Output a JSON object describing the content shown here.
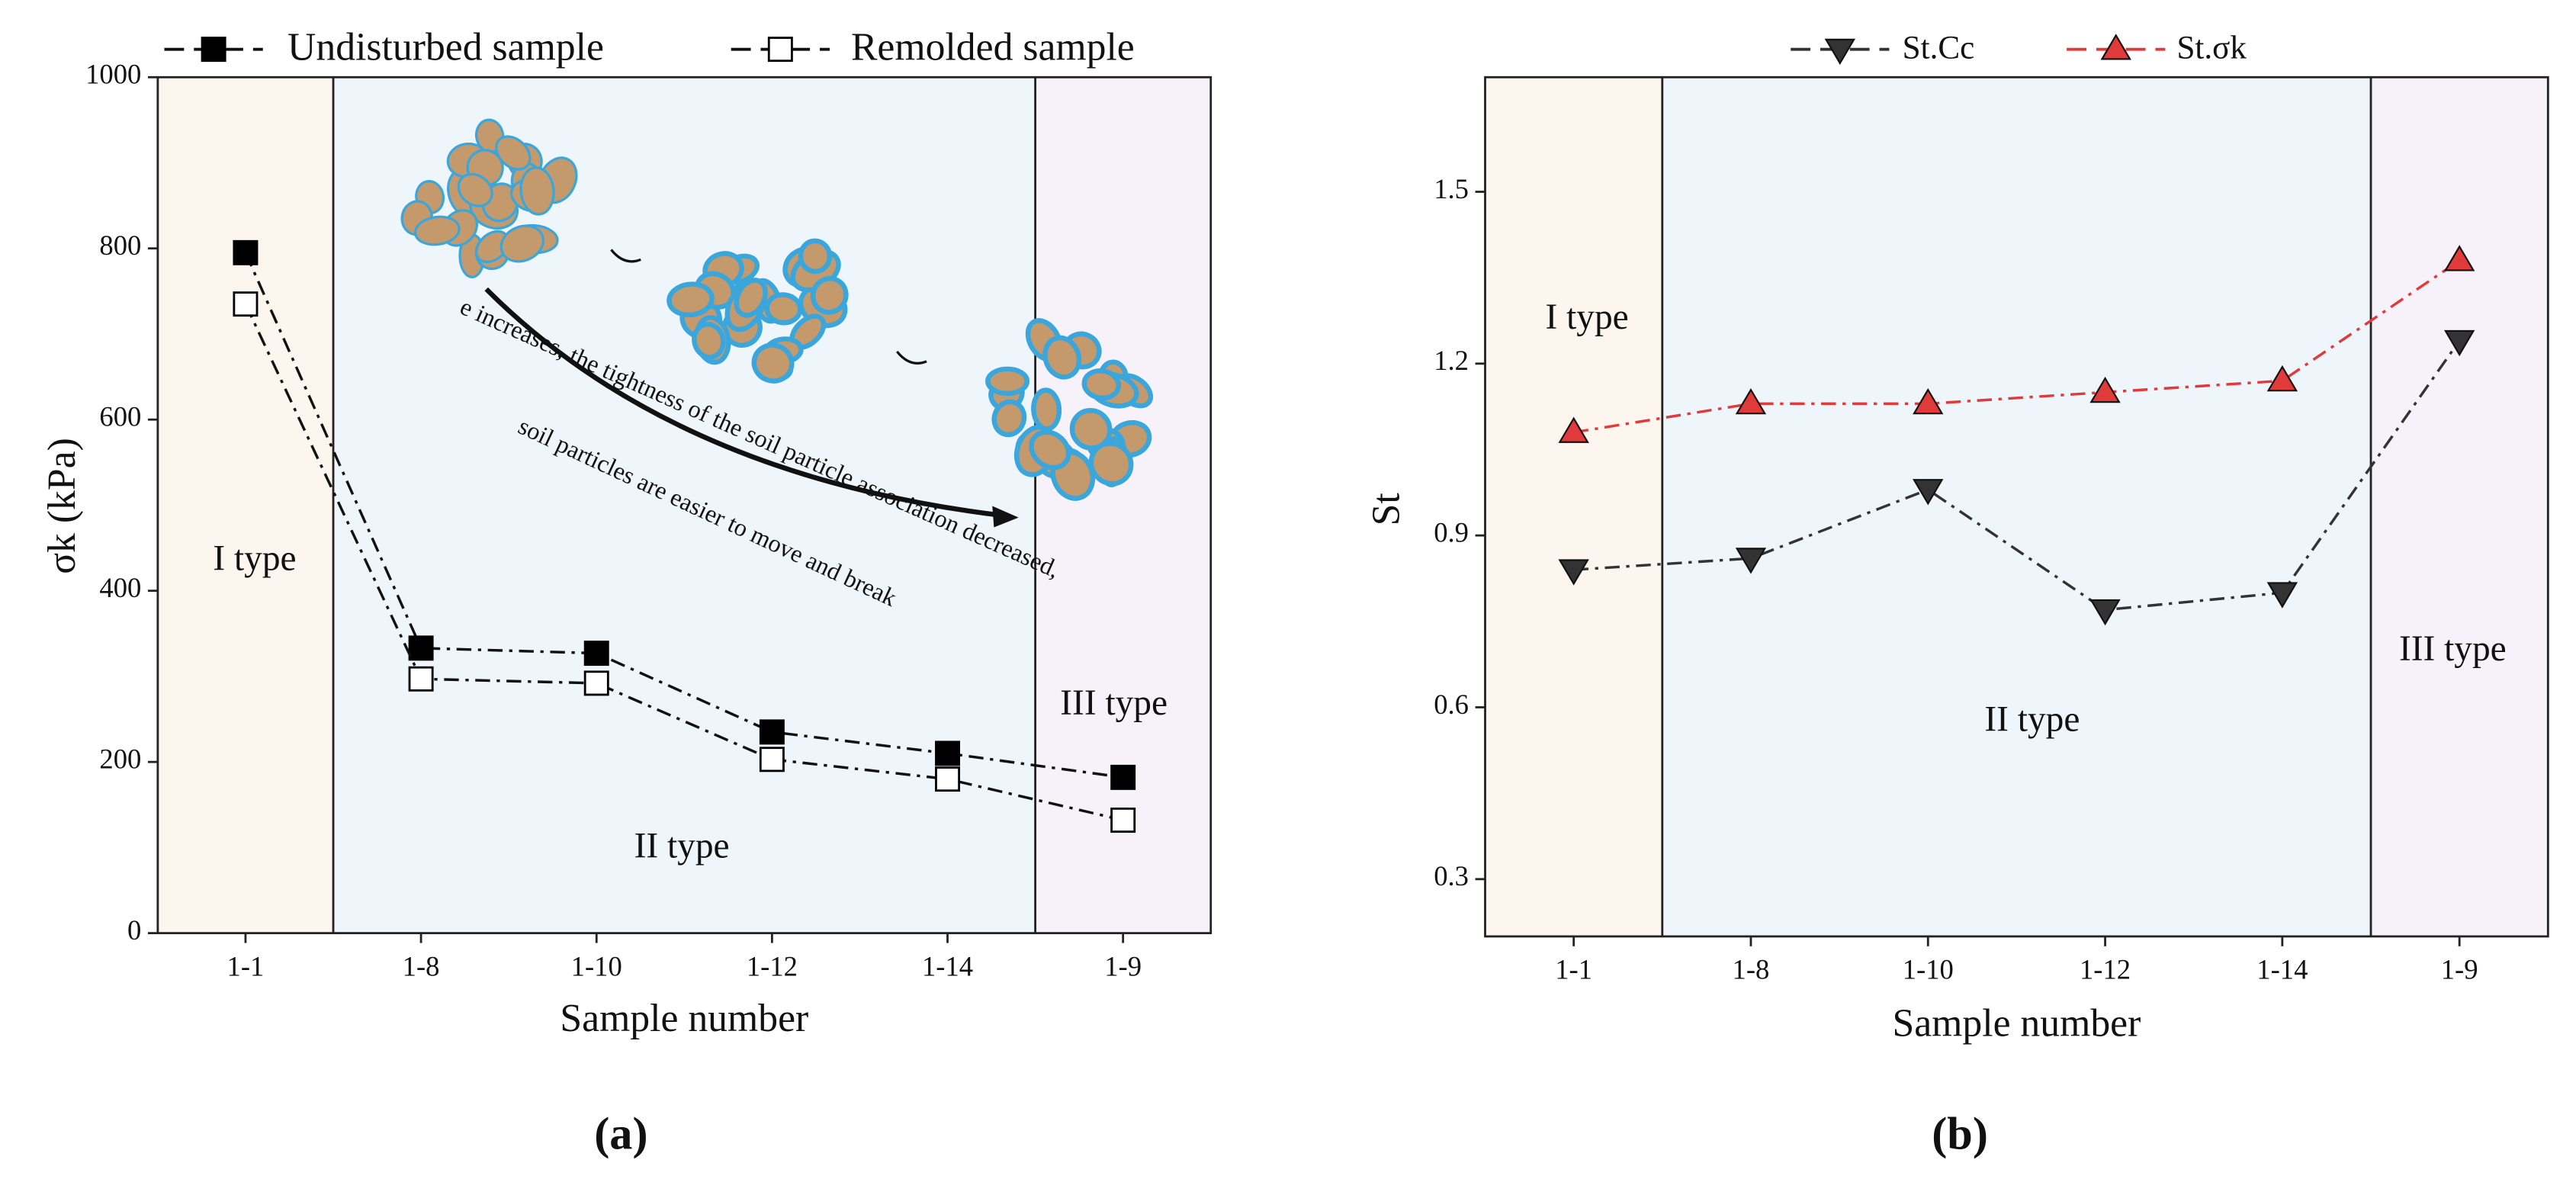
{
  "chart_data": [
    {
      "type": "line",
      "panel": "(a)",
      "xlabel": "Sample number",
      "ylabel": "σk (kPa)",
      "categories": [
        "1-1",
        "1-8",
        "1-10",
        "1-12",
        "1-14",
        "1-9"
      ],
      "series": [
        {
          "name": "Undisturbed sample",
          "color": "#111111",
          "marker": "square-filled",
          "values": [
            795,
            333,
            327,
            235,
            210,
            182
          ]
        },
        {
          "name": "Remolded sample",
          "color": "#111111",
          "marker": "square-open",
          "values": [
            735,
            297,
            292,
            203,
            180,
            132
          ]
        }
      ],
      "ylim": [
        0,
        1000
      ],
      "yticks": [
        0,
        200,
        400,
        600,
        800,
        1000
      ],
      "annotations": [
        "I type",
        "II type",
        "III type",
        "e increases, the tightness of the soil particle association decreased,",
        "soil particles are easier to move and break"
      ]
    },
    {
      "type": "line",
      "panel": "(b)",
      "xlabel": "Sample number",
      "ylabel": "St",
      "categories": [
        "1-1",
        "1-8",
        "1-10",
        "1-12",
        "1-14",
        "1-9"
      ],
      "series": [
        {
          "name": "St.Cc",
          "color": "#333333",
          "marker": "triangle-down",
          "values": [
            0.84,
            0.86,
            0.98,
            0.77,
            0.8,
            1.24
          ]
        },
        {
          "name": "St.σk",
          "color": "#e03a3a",
          "marker": "triangle-up",
          "values": [
            1.08,
            1.13,
            1.13,
            1.15,
            1.17,
            1.38
          ]
        }
      ],
      "ylim": [
        0.2,
        1.7
      ],
      "yticks": [
        0.3,
        0.6,
        0.9,
        1.2,
        1.5
      ],
      "annotations": [
        "I type",
        "II type",
        "III type"
      ]
    }
  ]
}
